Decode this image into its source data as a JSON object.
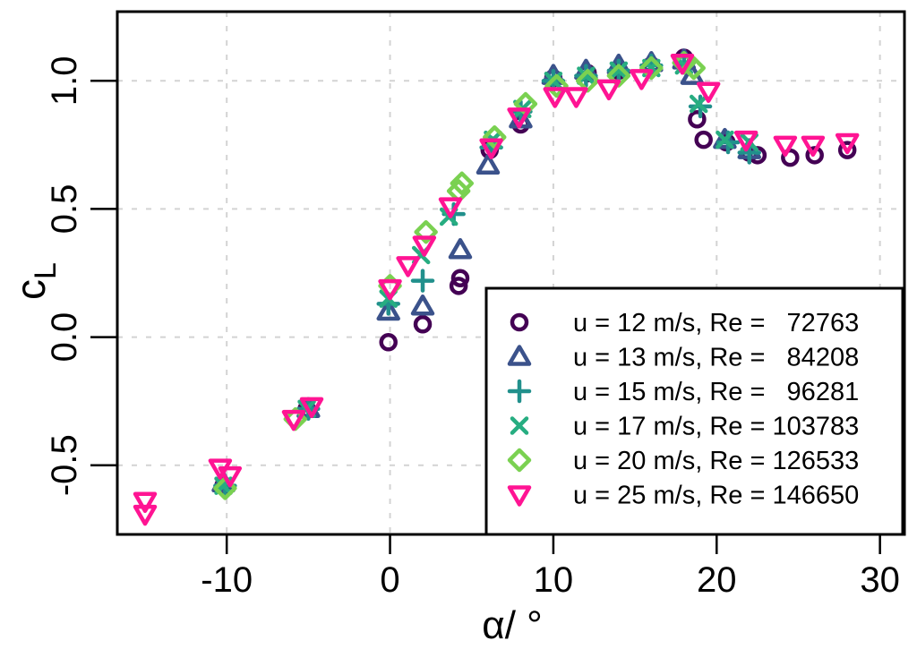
{
  "chart_data": {
    "type": "scatter",
    "title": "",
    "xlabel": "α/ °",
    "ylabel": "c",
    "ylabel_subscript": "L",
    "xlim": [
      -16.7,
      31.5
    ],
    "ylim": [
      -0.77,
      1.27
    ],
    "xticks": [
      -10,
      0,
      10,
      20,
      30
    ],
    "xtick_labels": [
      "-10",
      "0",
      "10",
      "20",
      "30"
    ],
    "yticks": [
      -0.5,
      0.0,
      0.5,
      1.0
    ],
    "ytick_labels": [
      "-0.5",
      "0.0",
      "0.5",
      "1.0"
    ],
    "grid": true,
    "legend_position": "bottom-right",
    "series": [
      {
        "name": "u = 12 m/s, Re =   72763",
        "marker": "circle",
        "color": "#440154",
        "x": [
          -10.2,
          -5.1,
          -0.1,
          2.0,
          4.2,
          4.3,
          6.1,
          8.0,
          10.0,
          12.1,
          14.0,
          16.0,
          18.0,
          18.8,
          19.2,
          20.6,
          22.0,
          22.5,
          24.5,
          26.0,
          28.0
        ],
        "y": [
          -0.58,
          -0.28,
          -0.02,
          0.05,
          0.2,
          0.23,
          0.73,
          0.83,
          1.01,
          1.03,
          1.04,
          1.06,
          1.09,
          0.85,
          0.77,
          0.76,
          0.72,
          0.71,
          0.7,
          0.71,
          0.73
        ]
      },
      {
        "name": "u = 13 m/s, Re =   84208",
        "marker": "triangle",
        "color": "#3B528B",
        "x": [
          -10.2,
          -5.0,
          -0.1,
          2.0,
          4.3,
          6.0,
          8.0,
          10.0,
          12.0,
          14.0,
          16.0,
          18.0,
          18.5,
          20.5,
          22.0
        ],
        "y": [
          -0.57,
          -0.28,
          0.1,
          0.12,
          0.34,
          0.67,
          0.85,
          1.02,
          1.04,
          1.06,
          1.07,
          1.08,
          1.02,
          0.77,
          0.73
        ]
      },
      {
        "name": "u = 15 m/s, Re =   96281",
        "marker": "plus",
        "color": "#21908C",
        "x": [
          -10.1,
          -5.0,
          -0.1,
          2.0,
          3.9,
          6.2,
          8.0,
          10.0,
          12.0,
          14.0,
          16.0,
          18.0,
          19.0,
          20.7,
          22.0
        ],
        "y": [
          -0.58,
          -0.28,
          0.13,
          0.22,
          0.48,
          0.74,
          0.88,
          1.0,
          1.02,
          1.04,
          1.06,
          1.07,
          0.9,
          0.76,
          0.72
        ]
      },
      {
        "name": "u = 17 m/s, Re = 103783",
        "marker": "x",
        "color": "#27AD81",
        "x": [
          -10.2,
          -5.1,
          -0.1,
          1.9,
          3.6,
          6.3,
          8.1,
          10.0,
          12.0,
          14.0,
          16.0,
          18.0,
          18.9,
          20.5,
          22.0
        ],
        "y": [
          -0.58,
          -0.28,
          0.15,
          0.32,
          0.47,
          0.77,
          0.89,
          1.0,
          1.02,
          1.04,
          1.05,
          1.06,
          0.91,
          0.77,
          0.76
        ]
      },
      {
        "name": "u = 20 m/s, Re = 126533",
        "marker": "diamond",
        "color": "#7AD151",
        "x": [
          -10.1,
          -5.8,
          0.0,
          2.2,
          4.2,
          4.4,
          6.4,
          8.3,
          10.2,
          12.1,
          14.0,
          16.0,
          18.0,
          18.6
        ],
        "y": [
          -0.59,
          -0.32,
          0.2,
          0.41,
          0.57,
          0.6,
          0.78,
          0.91,
          0.98,
          1.0,
          1.02,
          1.05,
          1.07,
          1.05
        ]
      },
      {
        "name": "u = 25 m/s, Re = 146650",
        "marker": "triangle-down",
        "color": "#FF1493",
        "x": [
          -15.0,
          -15.0,
          -10.4,
          -9.8,
          -5.9,
          -4.8,
          0.0,
          1.1,
          2.1,
          3.7,
          6.2,
          7.9,
          10.1,
          11.4,
          13.4,
          15.4,
          17.9,
          19.5,
          21.8,
          24.2,
          25.9,
          28.0
        ],
        "y": [
          -0.64,
          -0.69,
          -0.51,
          -0.54,
          -0.32,
          -0.27,
          0.19,
          0.28,
          0.36,
          0.51,
          0.74,
          0.86,
          0.94,
          0.94,
          0.97,
          1.01,
          1.07,
          0.96,
          0.77,
          0.75,
          0.75,
          0.76
        ]
      }
    ]
  }
}
